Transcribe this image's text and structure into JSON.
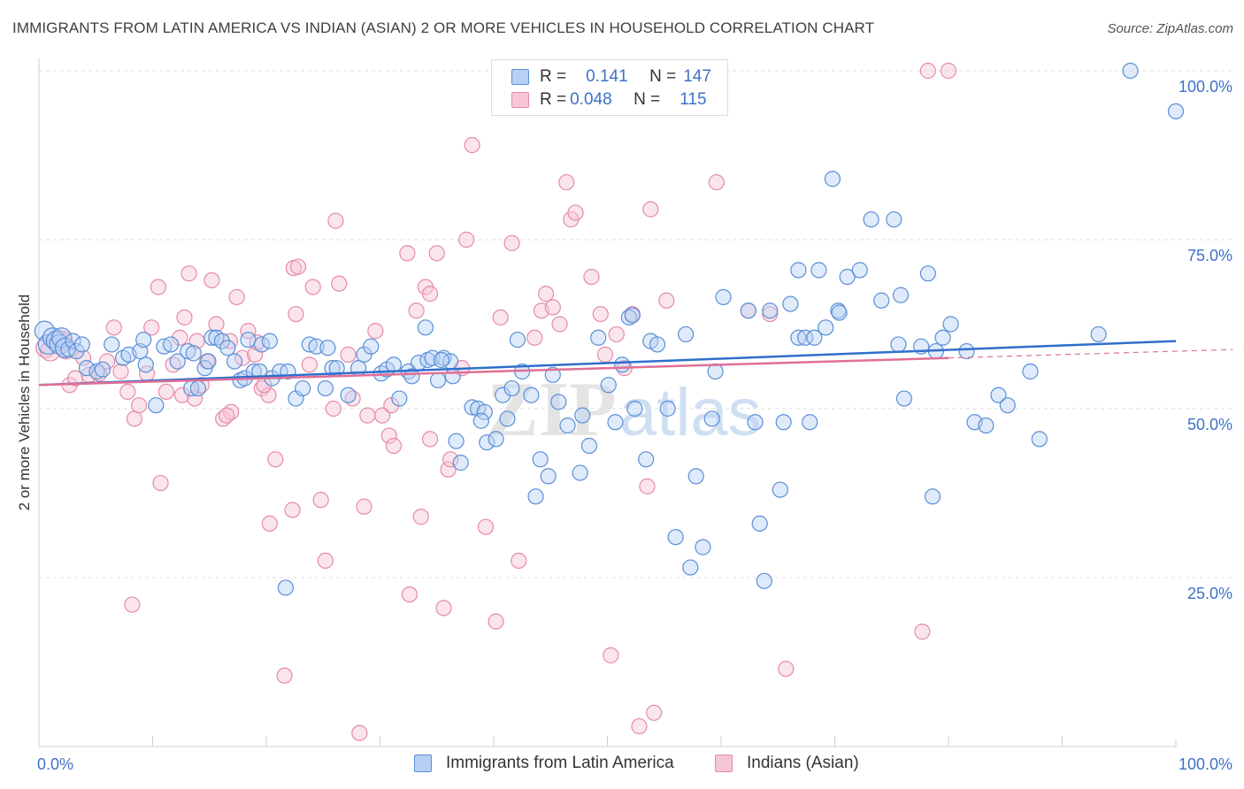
{
  "title": "IMMIGRANTS FROM LATIN AMERICA VS INDIAN (ASIAN) 2 OR MORE VEHICLES IN HOUSEHOLD CORRELATION CHART",
  "source": "Source: ZipAtlas.com",
  "watermark": {
    "zip": "ZIP",
    "atlas": "atlas"
  },
  "legend_top": {
    "r_label": "R =",
    "n_label": "N =",
    "series": [
      {
        "r": "0.141",
        "n": "147"
      },
      {
        "r": "0.048",
        "n": "115"
      }
    ]
  },
  "colors": {
    "blue_fill": "#b7d0f3",
    "blue_stroke": "#5a8fd6",
    "blue_line": "#2f6fcc",
    "pink_fill": "#f6c6d6",
    "pink_stroke": "#e68aa8",
    "pink_line": "#e06f97",
    "axis_text": "#3d72c8",
    "grid": "#dddddd"
  },
  "chart_data": {
    "type": "scatter",
    "title": "IMMIGRANTS FROM LATIN AMERICA VS INDIAN (ASIAN) 2 OR MORE VEHICLES IN HOUSEHOLD CORRELATION CHART",
    "xlabel": "",
    "ylabel": "2 or more Vehicles in Household",
    "xlim": [
      0,
      100
    ],
    "ylim": [
      0,
      100
    ],
    "x_tick_labels": [
      "0.0%",
      "100.0%"
    ],
    "y_tick_labels": [
      {
        "value": 25,
        "label": "25.0%"
      },
      {
        "value": 50,
        "label": "50.0%"
      },
      {
        "value": 75,
        "label": "75.0%"
      },
      {
        "value": 100,
        "label": "100.0%"
      }
    ],
    "grid": true,
    "legend_position": "bottom-center",
    "series": [
      {
        "name": "Immigrants from Latin America",
        "r": 0.141,
        "n": 147,
        "trend": [
          [
            0,
            53.5
          ],
          [
            100,
            60
          ]
        ],
        "points": [
          [
            0.5,
            61.5
          ],
          [
            0.8,
            59.5
          ],
          [
            1.2,
            60.5
          ],
          [
            1.5,
            60
          ],
          [
            1.8,
            59.5
          ],
          [
            2.0,
            60.5
          ],
          [
            2.3,
            59
          ],
          [
            2.6,
            58.8
          ],
          [
            3.0,
            60
          ],
          [
            3.3,
            58.5
          ],
          [
            3.8,
            59.5
          ],
          [
            4.2,
            56
          ],
          [
            5.1,
            55.5
          ],
          [
            5.6,
            55.8
          ],
          [
            6.4,
            59.5
          ],
          [
            7.4,
            57.5
          ],
          [
            7.9,
            58
          ],
          [
            8.9,
            58.5
          ],
          [
            9.4,
            56.5
          ],
          [
            9.2,
            60.2
          ],
          [
            10.3,
            50.5
          ],
          [
            11.0,
            59.2
          ],
          [
            11.6,
            59.5
          ],
          [
            12.2,
            57
          ],
          [
            13.1,
            58.5
          ],
          [
            13.6,
            58.2
          ],
          [
            13.4,
            53
          ],
          [
            14.0,
            53
          ],
          [
            14.6,
            56
          ],
          [
            14.9,
            57
          ],
          [
            15.2,
            60.5
          ],
          [
            15.6,
            60.5
          ],
          [
            16.1,
            60
          ],
          [
            16.6,
            59
          ],
          [
            17.2,
            57
          ],
          [
            17.7,
            54.2
          ],
          [
            18.1,
            54.5
          ],
          [
            18.4,
            60.2
          ],
          [
            18.9,
            55.5
          ],
          [
            19.4,
            55.5
          ],
          [
            19.6,
            59.5
          ],
          [
            20.3,
            60
          ],
          [
            20.5,
            54.5
          ],
          [
            21.2,
            55.5
          ],
          [
            21.9,
            55.5
          ],
          [
            22.6,
            51.5
          ],
          [
            23.2,
            53
          ],
          [
            23.8,
            59.5
          ],
          [
            24.4,
            59.2
          ],
          [
            25.2,
            53
          ],
          [
            25.4,
            59
          ],
          [
            25.8,
            56
          ],
          [
            26.2,
            56
          ],
          [
            27.2,
            52
          ],
          [
            28.1,
            56
          ],
          [
            28.6,
            58
          ],
          [
            29.2,
            59.2
          ],
          [
            30.1,
            55.2
          ],
          [
            30.6,
            55.8
          ],
          [
            31.2,
            56.5
          ],
          [
            31.7,
            51.5
          ],
          [
            32.5,
            55.5
          ],
          [
            32.8,
            54.8
          ],
          [
            33.4,
            56.8
          ],
          [
            34.2,
            57.2
          ],
          [
            34.6,
            57.5
          ],
          [
            35.1,
            54.2
          ],
          [
            35.6,
            57.5
          ],
          [
            36.2,
            57
          ],
          [
            36.4,
            54.8
          ],
          [
            36.7,
            45.2
          ],
          [
            37.1,
            42
          ],
          [
            34.0,
            62
          ],
          [
            35.4,
            57.2
          ],
          [
            38.1,
            50.2
          ],
          [
            38.6,
            50
          ],
          [
            39.2,
            49.5
          ],
          [
            39.4,
            45
          ],
          [
            40.2,
            45.5
          ],
          [
            40.8,
            52
          ],
          [
            41.2,
            48.5
          ],
          [
            41.6,
            53
          ],
          [
            42.1,
            60.2
          ],
          [
            42.5,
            55.5
          ],
          [
            43.3,
            52
          ],
          [
            43.7,
            37
          ],
          [
            44.1,
            42.5
          ],
          [
            44.8,
            40
          ],
          [
            45.2,
            55
          ],
          [
            45.7,
            51
          ],
          [
            46.5,
            47.5
          ],
          [
            47.6,
            40.5
          ],
          [
            47.8,
            49
          ],
          [
            48.4,
            44.5
          ],
          [
            49.2,
            60.5
          ],
          [
            50.1,
            53.5
          ],
          [
            50.7,
            48
          ],
          [
            51.3,
            56.5
          ],
          [
            51.9,
            63.5
          ],
          [
            52.2,
            63.8
          ],
          [
            52.4,
            50
          ],
          [
            53.4,
            42.5
          ],
          [
            53.8,
            60
          ],
          [
            54.4,
            59.5
          ],
          [
            55.3,
            50
          ],
          [
            56.0,
            31
          ],
          [
            57.3,
            26.5
          ],
          [
            56.9,
            61
          ],
          [
            57.8,
            40
          ],
          [
            58.4,
            29.5
          ],
          [
            59.2,
            48.5
          ],
          [
            59.5,
            55.5
          ],
          [
            60.2,
            66.5
          ],
          [
            66.8,
            70.5
          ],
          [
            62.4,
            64.5
          ],
          [
            63.0,
            48
          ],
          [
            63.4,
            33
          ],
          [
            63.8,
            24.5
          ],
          [
            64.3,
            64.5
          ],
          [
            65.2,
            38
          ],
          [
            65.5,
            48
          ],
          [
            66.1,
            65.5
          ],
          [
            66.8,
            60.5
          ],
          [
            67.4,
            60.5
          ],
          [
            67.8,
            48
          ],
          [
            68.2,
            60.5
          ],
          [
            68.6,
            70.5
          ],
          [
            69.2,
            62
          ],
          [
            70.3,
            64.5
          ],
          [
            69.8,
            84
          ],
          [
            70.4,
            64.2
          ],
          [
            71.1,
            69.5
          ],
          [
            72.2,
            70.5
          ],
          [
            73.2,
            78
          ],
          [
            74.1,
            66
          ],
          [
            75.2,
            78
          ],
          [
            75.6,
            59.5
          ],
          [
            75.8,
            66.8
          ],
          [
            76.1,
            51.5
          ],
          [
            77.6,
            59.2
          ],
          [
            78.2,
            70
          ],
          [
            78.6,
            37
          ],
          [
            78.9,
            58.5
          ],
          [
            79.5,
            60.5
          ],
          [
            80.2,
            62.5
          ],
          [
            81.6,
            58.5
          ],
          [
            82.3,
            48
          ],
          [
            83.3,
            47.5
          ],
          [
            84.4,
            52
          ],
          [
            85.2,
            50.5
          ],
          [
            88.0,
            45.5
          ],
          [
            87.2,
            55.5
          ],
          [
            93.2,
            61
          ],
          [
            96.0,
            100
          ],
          [
            100.0,
            94
          ],
          [
            21.7,
            23.5
          ],
          [
            38.9,
            48.2
          ]
        ]
      },
      {
        "name": "Indians (Asian)",
        "r": 0.048,
        "n": 115,
        "trend": [
          [
            0,
            53.5
          ],
          [
            80,
            57.5
          ]
        ],
        "points": [
          [
            0.6,
            59
          ],
          [
            1.0,
            58.5
          ],
          [
            1.6,
            60.2
          ],
          [
            2.1,
            60
          ],
          [
            2.4,
            58.8
          ],
          [
            2.7,
            53.5
          ],
          [
            3.2,
            54.5
          ],
          [
            3.9,
            57.5
          ],
          [
            4.4,
            55
          ],
          [
            5.3,
            55.2
          ],
          [
            6.0,
            57
          ],
          [
            6.6,
            62
          ],
          [
            7.2,
            55.5
          ],
          [
            7.8,
            52.5
          ],
          [
            8.4,
            48.5
          ],
          [
            8.8,
            50.5
          ],
          [
            9.5,
            55.2
          ],
          [
            9.9,
            62
          ],
          [
            10.5,
            68
          ],
          [
            10.7,
            39
          ],
          [
            11.2,
            52.5
          ],
          [
            11.8,
            56.5
          ],
          [
            12.4,
            60.5
          ],
          [
            12.8,
            63.5
          ],
          [
            12.6,
            52
          ],
          [
            13.2,
            70
          ],
          [
            13.7,
            51.5
          ],
          [
            14.3,
            53.5
          ],
          [
            14.8,
            57
          ],
          [
            15.2,
            69
          ],
          [
            15.6,
            62.5
          ],
          [
            16.2,
            48.5
          ],
          [
            16.9,
            49.5
          ],
          [
            17.4,
            66.5
          ],
          [
            17.9,
            57.5
          ],
          [
            18.4,
            61.5
          ],
          [
            19.0,
            58
          ],
          [
            19.6,
            53
          ],
          [
            20.2,
            52
          ],
          [
            20.3,
            33
          ],
          [
            20.8,
            42.5
          ],
          [
            21.6,
            10.5
          ],
          [
            22.3,
            35
          ],
          [
            22.6,
            64
          ],
          [
            22.4,
            70.8
          ],
          [
            22.8,
            71
          ],
          [
            23.8,
            56.5
          ],
          [
            24.1,
            68
          ],
          [
            24.8,
            36.5
          ],
          [
            25.2,
            27.5
          ],
          [
            25.9,
            50
          ],
          [
            26.4,
            68.5
          ],
          [
            27.2,
            58
          ],
          [
            27.6,
            51.5
          ],
          [
            28.2,
            2
          ],
          [
            28.6,
            35.5
          ],
          [
            28.9,
            49
          ],
          [
            29.6,
            61.5
          ],
          [
            30.2,
            49
          ],
          [
            30.8,
            46
          ],
          [
            31.2,
            44.5
          ],
          [
            32.4,
            73
          ],
          [
            32.6,
            22.5
          ],
          [
            33.2,
            64.5
          ],
          [
            33.6,
            34
          ],
          [
            34.0,
            68
          ],
          [
            34.4,
            67
          ],
          [
            35.0,
            73
          ],
          [
            35.6,
            20.5
          ],
          [
            36.0,
            41
          ],
          [
            36.2,
            42.5
          ],
          [
            37.6,
            75
          ],
          [
            37.2,
            56
          ],
          [
            38.1,
            89
          ],
          [
            39.3,
            32.5
          ],
          [
            40.2,
            18.5
          ],
          [
            40.6,
            63.5
          ],
          [
            41.6,
            74.5
          ],
          [
            42.2,
            27.5
          ],
          [
            43.6,
            60.5
          ],
          [
            44.2,
            64.5
          ],
          [
            44.6,
            67
          ],
          [
            45.2,
            65
          ],
          [
            45.8,
            62.5
          ],
          [
            46.4,
            83.5
          ],
          [
            46.8,
            78
          ],
          [
            47.2,
            79
          ],
          [
            48.6,
            69.5
          ],
          [
            49.4,
            64
          ],
          [
            49.8,
            58
          ],
          [
            50.3,
            13.5
          ],
          [
            50.8,
            61
          ],
          [
            51.5,
            56
          ],
          [
            52.2,
            64
          ],
          [
            52.8,
            3
          ],
          [
            53.5,
            38.5
          ],
          [
            53.8,
            79.5
          ],
          [
            54.1,
            5
          ],
          [
            55.2,
            66
          ],
          [
            59.6,
            83.5
          ],
          [
            62.4,
            64.5
          ],
          [
            64.3,
            64
          ],
          [
            65.7,
            11.5
          ],
          [
            77.7,
            17
          ],
          [
            80.0,
            100
          ],
          [
            78.2,
            100
          ],
          [
            8.2,
            21
          ],
          [
            13.9,
            60
          ],
          [
            16.5,
            49
          ],
          [
            26.1,
            77.8
          ],
          [
            16.8,
            60
          ],
          [
            19.2,
            59.8
          ],
          [
            31.0,
            50.5
          ],
          [
            34.4,
            45.5
          ],
          [
            19.8,
            53.5
          ]
        ]
      }
    ]
  },
  "bottom_legend": [
    "Immigrants from Latin America",
    "Indians (Asian)"
  ]
}
